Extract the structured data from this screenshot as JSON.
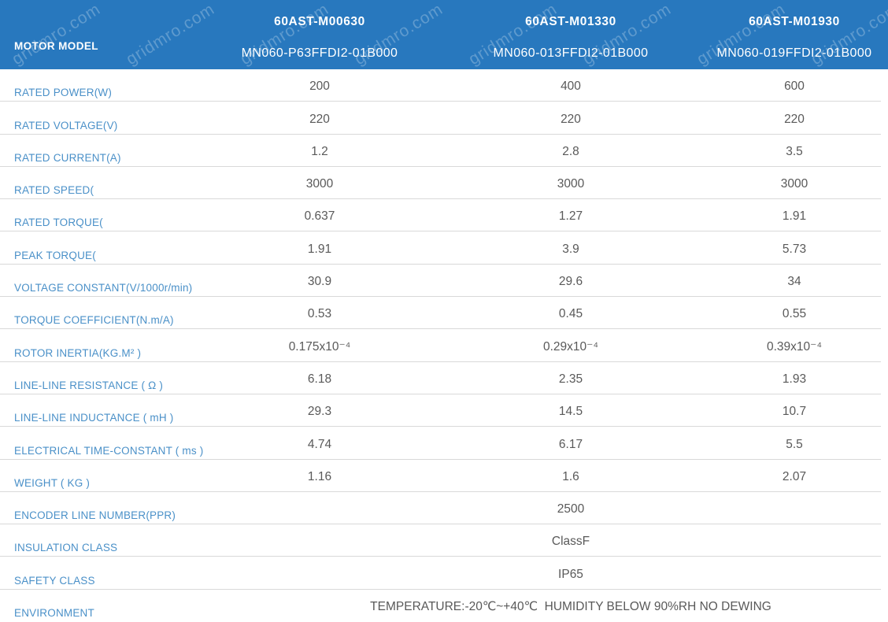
{
  "watermark": {
    "text": "gridmro.com"
  },
  "header": {
    "row_label": "MOTOR MODEL",
    "columns": [
      {
        "series": "60AST-M00630",
        "model": "MN060-P63FFDI2-01B000"
      },
      {
        "series": "60AST-M01330",
        "model": "MN060-013FFDI2-01B000"
      },
      {
        "series": "60AST-M01930",
        "model": "MN060-019FFDI2-01B000"
      }
    ]
  },
  "table": {
    "rows": [
      {
        "label": "RATED POWER(W)",
        "values": [
          "200",
          "400",
          "600"
        ]
      },
      {
        "label": "RATED VOLTAGE(V)",
        "values": [
          "220",
          "220",
          "220"
        ]
      },
      {
        "label": "RATED CURRENT(A)",
        "values": [
          "1.2",
          "2.8",
          "3.5"
        ]
      },
      {
        "label": "RATED SPEED(",
        "values": [
          "3000",
          "3000",
          "3000"
        ]
      },
      {
        "label": "RATED TORQUE(",
        "values": [
          "0.637",
          "1.27",
          "1.91"
        ]
      },
      {
        "label": "PEAK TORQUE(",
        "values": [
          "1.91",
          "3.9",
          "5.73"
        ]
      },
      {
        "label": "VOLTAGE CONSTANT(V/1000r/min)",
        "values": [
          "30.9",
          "29.6",
          "34"
        ]
      },
      {
        "label": "TORQUE COEFFICIENT(N.m/A)",
        "values": [
          "0.53",
          "0.45",
          "0.55"
        ]
      },
      {
        "label": "ROTOR INERTIA(KG.M² )",
        "values": [
          "0.175x10⁻⁴",
          "0.29x10⁻⁴",
          "0.39x10⁻⁴"
        ]
      },
      {
        "label": "LINE-LINE RESISTANCE ( Ω )",
        "values": [
          "6.18",
          "2.35",
          "1.93"
        ]
      },
      {
        "label": "LINE-LINE INDUCTANCE ( mH )",
        "values": [
          "29.3",
          "14.5",
          "10.7"
        ]
      },
      {
        "label": "ELECTRICAL TIME-CONSTANT ( ms )",
        "values": [
          "4.74",
          "6.17",
          "5.5"
        ]
      },
      {
        "label": "WEIGHT ( KG )",
        "values": [
          "1.16",
          "1.6",
          "2.07"
        ]
      },
      {
        "label": "ENCODER LINE NUMBER(PPR)",
        "merged_value": "2500"
      },
      {
        "label": "INSULATION CLASS",
        "merged_value": "ClassF"
      },
      {
        "label": "SAFETY CLASS",
        "merged_value": "IP65"
      },
      {
        "label": "ENVIRONMENT",
        "merged_value": "TEMPERATURE:-20℃~+40℃  HUMIDITY BELOW 90%RH NO DEWING"
      }
    ]
  },
  "colors": {
    "header_bg": "#2878BE",
    "label_text": "#4A90C8",
    "value_text": "#595959",
    "divider": "#D9D9D9"
  }
}
